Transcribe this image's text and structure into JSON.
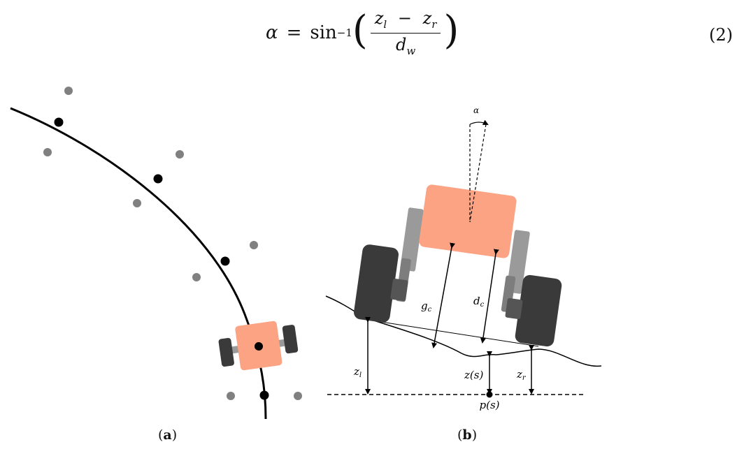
{
  "equation": {
    "lhs": "α",
    "equals": "=",
    "func": "sin",
    "exponent": "−1",
    "numerator_left": "z",
    "numerator_left_sub": "l",
    "minus": "−",
    "numerator_right": "z",
    "numerator_right_sub": "r",
    "denominator": "d",
    "denominator_sub": "w",
    "number": "(2)"
  },
  "figure_a": {
    "caption_open": "(",
    "caption_letter": "a",
    "caption_close": ")"
  },
  "figure_b": {
    "label_alpha": "α",
    "label_gc": "g",
    "label_gc_sub": "c",
    "label_dc": "d",
    "label_dc_sub": "c",
    "label_zl": "z",
    "label_zl_sub": "l",
    "label_zs": "z(s)",
    "label_zr": "z",
    "label_zr_sub": "r",
    "label_ps": "p(s)",
    "caption_open": "(",
    "caption_letter": "b",
    "caption_close": ")"
  },
  "colors": {
    "robot_body": "#fca384",
    "wheel": "#3a3a3a",
    "strut": "#9a9a9a",
    "waypoint_grey": "#808080",
    "path": "#000000"
  }
}
